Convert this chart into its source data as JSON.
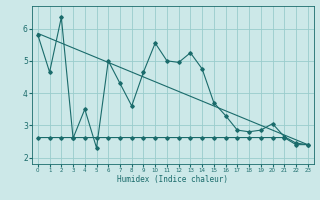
{
  "xlabel": "Humidex (Indice chaleur)",
  "bg_color": "#cce8e8",
  "grid_color": "#99cccc",
  "line_color": "#1a6b6b",
  "xlim": [
    -0.5,
    23.5
  ],
  "ylim": [
    1.8,
    6.7
  ],
  "x_ticks": [
    0,
    1,
    2,
    3,
    4,
    5,
    6,
    7,
    8,
    9,
    10,
    11,
    12,
    13,
    14,
    15,
    16,
    17,
    18,
    19,
    20,
    21,
    22,
    23
  ],
  "y_ticks": [
    2,
    3,
    4,
    5,
    6
  ],
  "series1_x": [
    0,
    1,
    2,
    3,
    4,
    5,
    6,
    7,
    8,
    9,
    10,
    11,
    12,
    13,
    14,
    15,
    16,
    17,
    18,
    19,
    20,
    21,
    22,
    23
  ],
  "series1_y": [
    5.8,
    4.65,
    6.35,
    2.6,
    3.5,
    2.3,
    5.0,
    4.3,
    3.6,
    4.65,
    5.55,
    5.0,
    4.95,
    5.25,
    4.75,
    3.7,
    3.3,
    2.85,
    2.8,
    2.85,
    3.05,
    2.65,
    2.45,
    2.4
  ],
  "series2_x": [
    0,
    1,
    2,
    3,
    4,
    5,
    6,
    7,
    8,
    9,
    10,
    11,
    12,
    13,
    14,
    15,
    16,
    17,
    18,
    19,
    20,
    21,
    22,
    23
  ],
  "series2_y": [
    2.62,
    2.62,
    2.62,
    2.62,
    2.62,
    2.62,
    2.62,
    2.62,
    2.62,
    2.62,
    2.62,
    2.62,
    2.62,
    2.62,
    2.62,
    2.62,
    2.62,
    2.62,
    2.62,
    2.62,
    2.62,
    2.62,
    2.4,
    2.4
  ],
  "trend_x": [
    0,
    23
  ],
  "trend_y": [
    5.85,
    2.4
  ]
}
